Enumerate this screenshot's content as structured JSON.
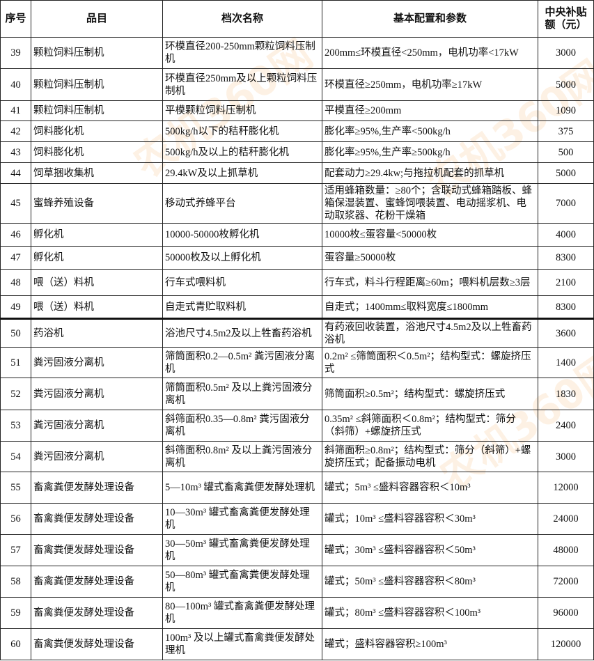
{
  "watermark": "农机360网",
  "headers": [
    "序号",
    "品目",
    "档次名称",
    "基本配置和参数",
    "中央补贴额（元）"
  ],
  "rows": [
    {
      "no": "39",
      "item": "颗粒饲料压制机",
      "grade": "环模直径200-250mm颗粒饲料压制机",
      "spec": "200mm≤环模直径<250mm，电机功率<17kW",
      "subsidy": "3000"
    },
    {
      "no": "40",
      "item": "颗粒饲料压制机",
      "grade": "环模直径250mm及以上颗粒饲料压制机",
      "spec": "环模直径≥250mm，电机功率≥17kW",
      "subsidy": "5000"
    },
    {
      "no": "41",
      "item": "颗粒饲料压制机",
      "grade": "平模颗粒饲料压制机",
      "spec": "平模直径≥200mm",
      "subsidy": "1090"
    },
    {
      "no": "42",
      "item": "饲料膨化机",
      "grade": "500kg/h以下的秸秆膨化机",
      "spec": "膨化率≥95%,生产率<500kg/h",
      "subsidy": "375"
    },
    {
      "no": "43",
      "item": "饲料膨化机",
      "grade": "500kg/h及以上的秸秆膨化机",
      "spec": "膨化率≥95%,生产率≥500kg/h",
      "subsidy": "500"
    },
    {
      "no": "44",
      "item": "饲草捆收集机",
      "grade": "29.4kW及以上抓草机",
      "spec": "配套动力≥29.4kw;与拖拉机配套的抓草机",
      "subsidy": "5000"
    },
    {
      "no": "45",
      "item": "蜜蜂养殖设备",
      "grade": "移动式养蜂平台",
      "spec": "适用蜂箱数量：≥80个；含联动式蜂箱踏板、蜂箱保湿装置、蜜蜂饲喂装置、电动摇浆机、电动取浆器、花粉干燥箱",
      "subsidy": "7000"
    },
    {
      "no": "46",
      "item": "孵化机",
      "grade": "10000-50000枚孵化机",
      "spec": "10000枚≤蛋容量<50000枚",
      "subsidy": "4000"
    },
    {
      "no": "47",
      "item": "孵化机",
      "grade": "50000枚及以上孵化机",
      "spec": "蛋容量≥50000枚",
      "subsidy": "8300"
    },
    {
      "no": "48",
      "item": "喂（送）料机",
      "grade": "行车式喂料机",
      "spec": "行车式，料斗行程距离≥60m；喂料机层数≥3层",
      "subsidy": "2100"
    },
    {
      "no": "49",
      "item": "喂（送）料机",
      "grade": "自走式青贮取料机",
      "spec": "自走式；1400mm≤取料宽度≤1800mm",
      "subsidy": "8300"
    },
    {
      "no": "50",
      "item": "药浴机",
      "grade": "浴池尺寸4.5m2及以上牲畜药浴机",
      "spec": "有药液回收装置，浴池尺寸4.5m2及以上牲畜药浴机",
      "subsidy": "3600"
    },
    {
      "no": "51",
      "item": "粪污固液分离机",
      "grade": "筛筒面积0.2—0.5m² 粪污固液分离机",
      "spec": "0.2m² ≤筛筒面积＜0.5m²；结构型式：螺旋挤压式",
      "subsidy": "1400"
    },
    {
      "no": "52",
      "item": "粪污固液分离机",
      "grade": "筛筒面积0.5m² 及以上粪污固液分离机",
      "spec": "筛筒面积≥0.5m²；结构型式：螺旋挤压式",
      "subsidy": "1830"
    },
    {
      "no": "53",
      "item": "粪污固液分离机",
      "grade": "斜筛面积0.35—0.8m² 粪污固液分离机",
      "spec": "0.35m² ≤斜筛面积＜0.8m²；结构型式：筛分（斜筛）+螺旋挤压式",
      "subsidy": "2400"
    },
    {
      "no": "54",
      "item": "粪污固液分离机",
      "grade": "斜筛面积0.8m² 及以上粪污固液分离机",
      "spec": "斜筛面积≥0.8m²；结构型式：筛分（斜筛）+螺旋挤压式；配备振动电机",
      "subsidy": "3000"
    },
    {
      "no": "55",
      "item": "畜禽粪便发酵处理设备",
      "grade": "5—10m³ 罐式畜禽粪便发酵处理机",
      "spec": "罐式；5m³ ≤盛料容器容积＜10m³",
      "subsidy": "12000"
    },
    {
      "no": "56",
      "item": "畜禽粪便发酵处理设备",
      "grade": "10—30m³ 罐式畜禽粪便发酵处理机",
      "spec": "罐式；10m³ ≤盛料容器容积＜30m³",
      "subsidy": "24000"
    },
    {
      "no": "57",
      "item": "畜禽粪便发酵处理设备",
      "grade": "30—50m³ 罐式畜禽粪便发酵处理机",
      "spec": "罐式；30m³ ≤盛料容器容积＜50m³",
      "subsidy": "48000"
    },
    {
      "no": "58",
      "item": "畜禽粪便发酵处理设备",
      "grade": "50—80m³ 罐式畜禽粪便发酵处理机",
      "spec": "罐式；50m³ ≤盛料容器容积＜80m³",
      "subsidy": "72000"
    },
    {
      "no": "59",
      "item": "畜禽粪便发酵处理设备",
      "grade": "80—100m³ 罐式畜禽粪便发酵处理机",
      "spec": "罐式；80m³ ≤盛料容器容积＜100m³",
      "subsidy": "96000"
    },
    {
      "no": "60",
      "item": "畜禽粪便发酵处理设备",
      "grade": "100m³ 及以上罐式畜禽粪便发酵处理机",
      "spec": "罐式；盛料容器容积≥100m³",
      "subsidy": "120000"
    }
  ]
}
